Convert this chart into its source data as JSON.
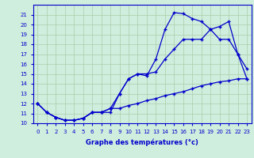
{
  "line1_x": [
    0,
    1,
    2,
    3,
    4,
    5,
    6,
    7,
    8,
    9,
    10,
    11,
    12,
    13,
    14,
    15,
    16,
    17,
    18,
    19,
    20,
    21,
    22,
    23
  ],
  "line1_y": [
    12,
    11.1,
    10.6,
    10.3,
    10.3,
    10.5,
    11.1,
    11.1,
    11.1,
    13.0,
    14.5,
    15.0,
    14.8,
    16.5,
    19.5,
    21.2,
    21.1,
    20.6,
    20.3,
    19.5,
    19.8,
    20.3,
    17.0,
    14.5
  ],
  "line2_x": [
    0,
    1,
    2,
    3,
    4,
    5,
    6,
    7,
    8,
    9,
    10,
    11,
    12,
    13,
    14,
    15,
    16,
    17,
    18,
    19,
    20,
    21,
    22,
    23
  ],
  "line2_y": [
    12,
    11.1,
    10.6,
    10.3,
    10.3,
    10.5,
    11.1,
    11.1,
    11.5,
    13.0,
    14.5,
    15.0,
    15.0,
    15.2,
    16.5,
    17.5,
    18.5,
    18.5,
    18.5,
    19.5,
    18.5,
    18.5,
    17.0,
    15.5
  ],
  "line3_x": [
    0,
    1,
    2,
    3,
    4,
    5,
    6,
    7,
    8,
    9,
    10,
    11,
    12,
    13,
    14,
    15,
    16,
    17,
    18,
    19,
    20,
    21,
    22,
    23
  ],
  "line3_y": [
    12,
    11.1,
    10.6,
    10.3,
    10.3,
    10.5,
    11.1,
    11.1,
    11.5,
    11.5,
    11.8,
    12.0,
    12.3,
    12.5,
    12.8,
    13.0,
    13.2,
    13.5,
    13.8,
    14.0,
    14.2,
    14.3,
    14.5,
    14.5
  ],
  "line_color": "#0000cc",
  "bg_color": "#d0eedd",
  "grid_color": "#aaccaa",
  "xlabel": "Graphe des températures (°c)",
  "xlim_min": -0.5,
  "xlim_max": 23.5,
  "ylim_min": 10,
  "ylim_max": 22,
  "xticks": [
    0,
    1,
    2,
    3,
    4,
    5,
    6,
    7,
    8,
    9,
    10,
    11,
    12,
    13,
    14,
    15,
    16,
    17,
    18,
    19,
    20,
    21,
    22,
    23
  ],
  "yticks": [
    10,
    11,
    12,
    13,
    14,
    15,
    16,
    17,
    18,
    19,
    20,
    21
  ],
  "marker": "+"
}
